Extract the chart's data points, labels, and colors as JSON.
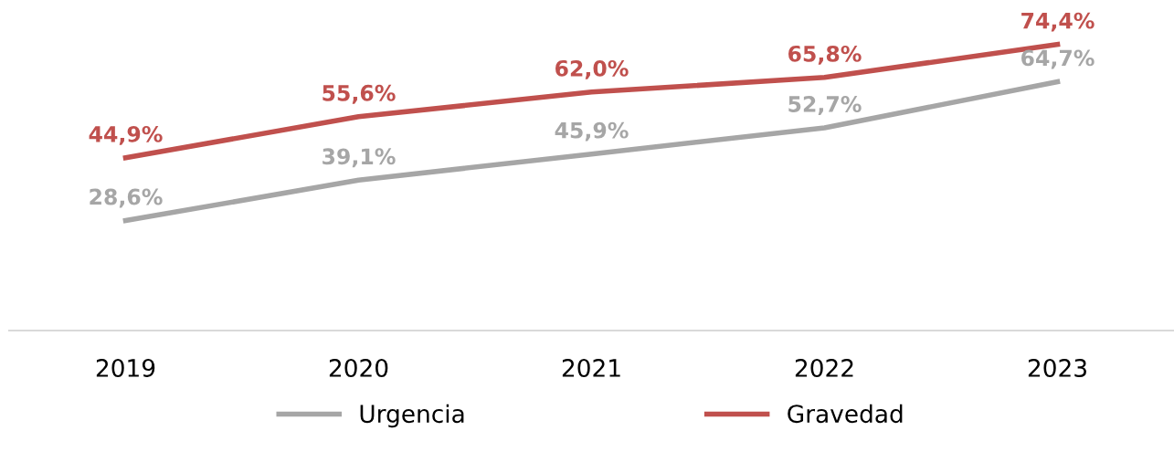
{
  "chart_data": {
    "type": "line",
    "categories": [
      "2019",
      "2020",
      "2021",
      "2022",
      "2023"
    ],
    "series": [
      {
        "name": "Urgencia",
        "color": "#a6a6a6",
        "values": [
          28.6,
          39.1,
          45.9,
          52.7,
          64.7
        ],
        "value_labels": [
          "28,6%",
          "39,1%",
          "45,9%",
          "52,7%",
          "64,7%"
        ]
      },
      {
        "name": "Gravedad",
        "color": "#c0504d",
        "values": [
          44.9,
          55.6,
          62.0,
          65.8,
          74.4
        ],
        "value_labels": [
          "44,9%",
          "55,6%",
          "62,0%",
          "65,8%",
          "74,4%"
        ]
      }
    ],
    "tick_labels": "x",
    "grid": false,
    "legend": "bottom",
    "marker": "none",
    "line_style": "solid"
  }
}
